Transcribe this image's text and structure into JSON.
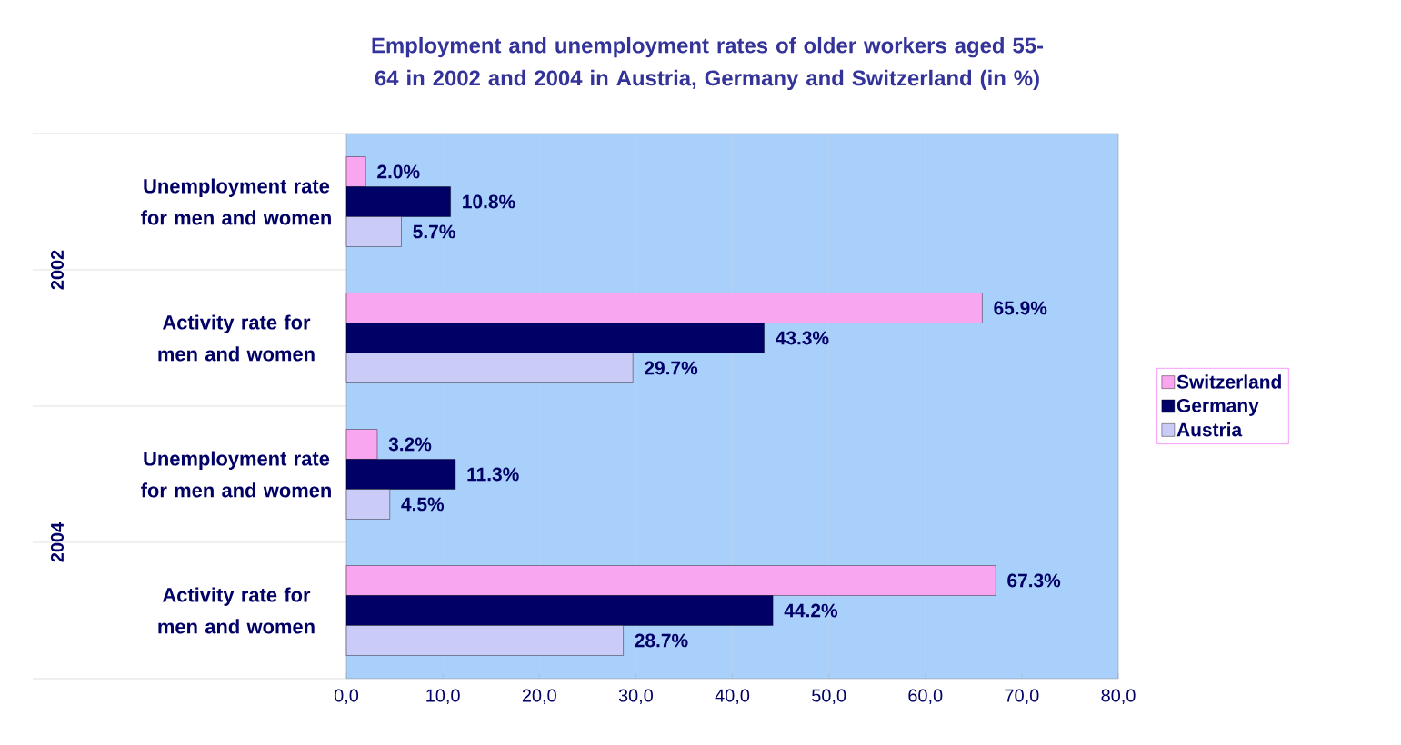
{
  "chart_data": {
    "type": "bar",
    "orientation": "horizontal",
    "title": "Employment and unemployment rates of older workers aged 55-64 in 2002 and 2004 in Austria, Germany and Switzerland (in %)",
    "categories": [
      "Unemployment rate for men and women",
      "Activity rate for men and women",
      "Unemployment rate for men and women",
      "Activity rate for men and women"
    ],
    "series": [
      {
        "name": "Switzerland",
        "color": "#f9a6f0",
        "values": [
          2.0,
          65.9,
          3.2,
          67.3
        ],
        "value_labels": [
          "2.0%",
          "65.9%",
          "3.2%",
          "67.3%"
        ]
      },
      {
        "name": "Germany",
        "color": "#000066",
        "values": [
          10.8,
          43.3,
          11.3,
          44.2
        ],
        "value_labels": [
          "10.8%",
          "43.3%",
          "11.3%",
          "44.2%"
        ]
      },
      {
        "name": "Austria",
        "color": "#cbcbf7",
        "values": [
          5.7,
          29.7,
          4.5,
          28.7
        ],
        "value_labels": [
          "5.7%",
          "29.7%",
          "4.5%",
          "28.7%"
        ]
      }
    ],
    "annotations": [
      "2002",
      "2004"
    ],
    "xlim": [
      0,
      80
    ],
    "xticks": [
      {
        "value": 0,
        "label": "0,0"
      },
      {
        "value": 10,
        "label": "10,0"
      },
      {
        "value": 20,
        "label": "20,0"
      },
      {
        "value": 30,
        "label": "30,0"
      },
      {
        "value": 40,
        "label": "40,0"
      },
      {
        "value": 50,
        "label": "50,0"
      },
      {
        "value": 60,
        "label": "60,0"
      },
      {
        "value": 70,
        "label": "70,0"
      },
      {
        "value": 80,
        "label": "80,0"
      }
    ],
    "grid": "x",
    "legend": "right"
  }
}
